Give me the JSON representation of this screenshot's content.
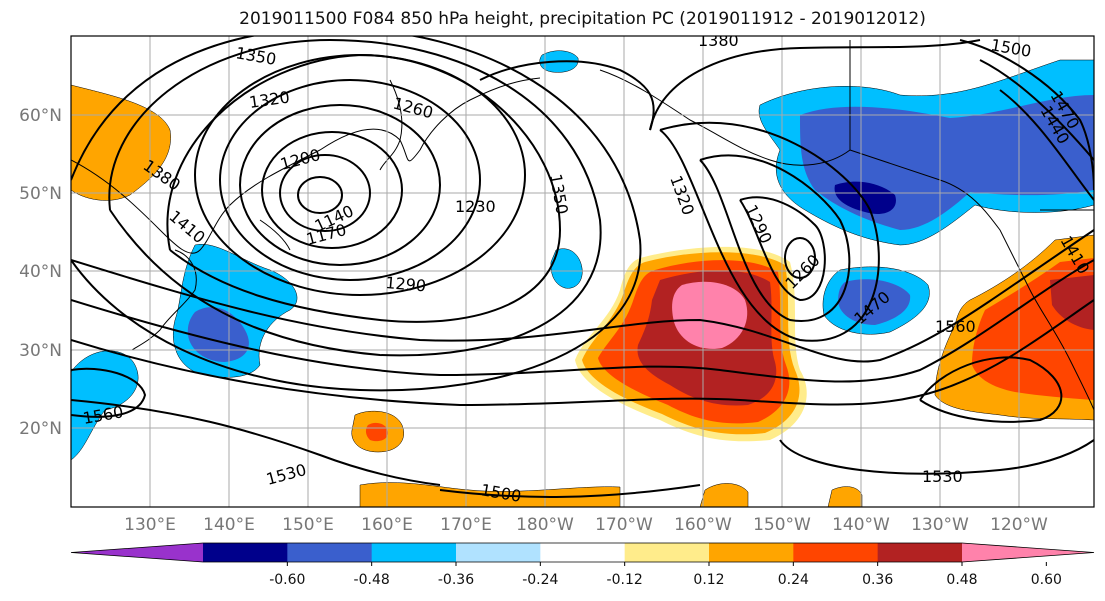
{
  "title": "2019011500 F084 850 hPa height, precipitation PC (2019011912 - 2019012012)",
  "lat_labels": [
    "60°N",
    "50°N",
    "40°N",
    "30°N",
    "20°N"
  ],
  "lon_labels": [
    "130°E",
    "140°E",
    "150°E",
    "160°E",
    "170°E",
    "180°W",
    "170°W",
    "160°W",
    "150°W",
    "140°W",
    "130°W",
    "120°W"
  ],
  "contour_labels": [
    "1350",
    "1380",
    "1500",
    "1320",
    "1260",
    "1200",
    "1380",
    "1410",
    "1140",
    "1170",
    "1230",
    "1350",
    "1320",
    "1290",
    "1260",
    "1470",
    "1560",
    "1470",
    "1410",
    "1440",
    "1290",
    "1560",
    "1530",
    "1500",
    "1530"
  ],
  "colorbar": {
    "ticks": [
      "-0.60",
      "-0.48",
      "-0.36",
      "-0.24",
      "-0.12",
      "0.12",
      "0.24",
      "0.36",
      "0.48",
      "0.60"
    ],
    "colors": [
      "#9932cc",
      "#00008b",
      "#3a5fcd",
      "#00bfff",
      "#b0e2ff",
      "#ffffff",
      "#ffec8b",
      "#ffa500",
      "#ff4500",
      "#b22222",
      "#ff82ab"
    ]
  }
}
